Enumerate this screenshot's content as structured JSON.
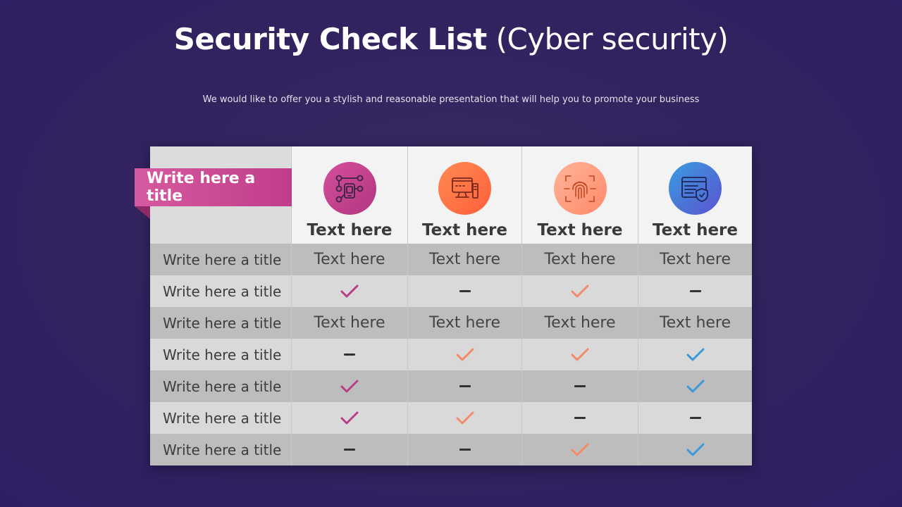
{
  "slide": {
    "title_bold": "Security Check List",
    "title_light": "(Cyber security)",
    "subtitle": "We would like to offer you a stylish and reasonable presentation that will help you to promote your business"
  },
  "ribbon": {
    "label": "Write here a title"
  },
  "colors": {
    "magenta": "#c2408b",
    "orange": "#ff7043",
    "peach": "#ff9a7a",
    "blue": "#3a8fd9",
    "check_magenta": "#b93c86",
    "check_orange": "#f58a6a",
    "check_blue": "#3a9ad9"
  },
  "columns": [
    {
      "label": "Text here",
      "icon": "network-device-icon"
    },
    {
      "label": "Text here",
      "icon": "computer-monitor-icon"
    },
    {
      "label": "Text here",
      "icon": "fingerprint-scan-icon"
    },
    {
      "label": "Text here",
      "icon": "browser-shield-icon"
    }
  ],
  "rows": [
    {
      "label": "Write here a title",
      "cells": [
        "Text here",
        "Text here",
        "Text here",
        "Text here"
      ]
    },
    {
      "label": "Write here a title",
      "cells": [
        "check",
        "dash",
        "check",
        "dash"
      ]
    },
    {
      "label": "Write here a title",
      "cells": [
        "Text here",
        "Text here",
        "Text here",
        "Text here"
      ]
    },
    {
      "label": "Write here a title",
      "cells": [
        "dash",
        "check",
        "check",
        "check"
      ]
    },
    {
      "label": "Write here a title",
      "cells": [
        "check",
        "dash",
        "dash",
        "check"
      ]
    },
    {
      "label": "Write here a title",
      "cells": [
        "check",
        "check",
        "dash",
        "dash"
      ]
    },
    {
      "label": "Write here a title",
      "cells": [
        "dash",
        "dash",
        "check",
        "check"
      ]
    }
  ]
}
